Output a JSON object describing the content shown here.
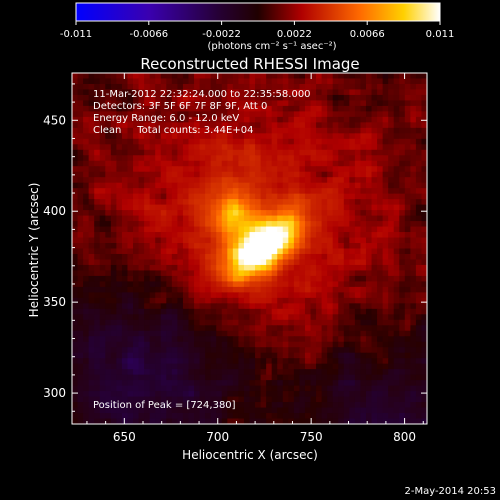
{
  "chart_data": {
    "type": "heatmap",
    "title": "Reconstructed RHESSI Image",
    "xlabel": "Heliocentric X (arcsec)",
    "ylabel": "Heliocentric Y (arcsec)",
    "xlim": [
      622,
      812
    ],
    "ylim": [
      283,
      476
    ],
    "x_ticks": [
      650,
      700,
      750,
      800
    ],
    "y_ticks": [
      300,
      350,
      400,
      450
    ],
    "colorbar": {
      "min": -0.011,
      "max": 0.011,
      "ticks": [
        "-0.011",
        "-0.0066",
        "-0.0022",
        "0.0022",
        "0.0066",
        "0.011"
      ],
      "unit_label": "(photons cm⁻² s⁻¹ asec⁻²)",
      "colormap": "blue-purple-red-yellow-white"
    },
    "annotations": [
      "11-Mar-2012 22:32:24.000 to 22:35:58.000",
      "Detectors: 3F 5F 6F 7F 8F 9F, Att 0",
      "Energy Range: 6.0 - 12.0 keV",
      "Clean     Total counts: 3.44E+04"
    ],
    "peak_label": "Position of Peak = [724,380]",
    "peak": {
      "x": 724,
      "y": 380,
      "value": 0.011
    },
    "secondary_peak": {
      "x": 707,
      "y": 398
    },
    "timestamp": "2-May-2014 20:53",
    "grid": false
  }
}
